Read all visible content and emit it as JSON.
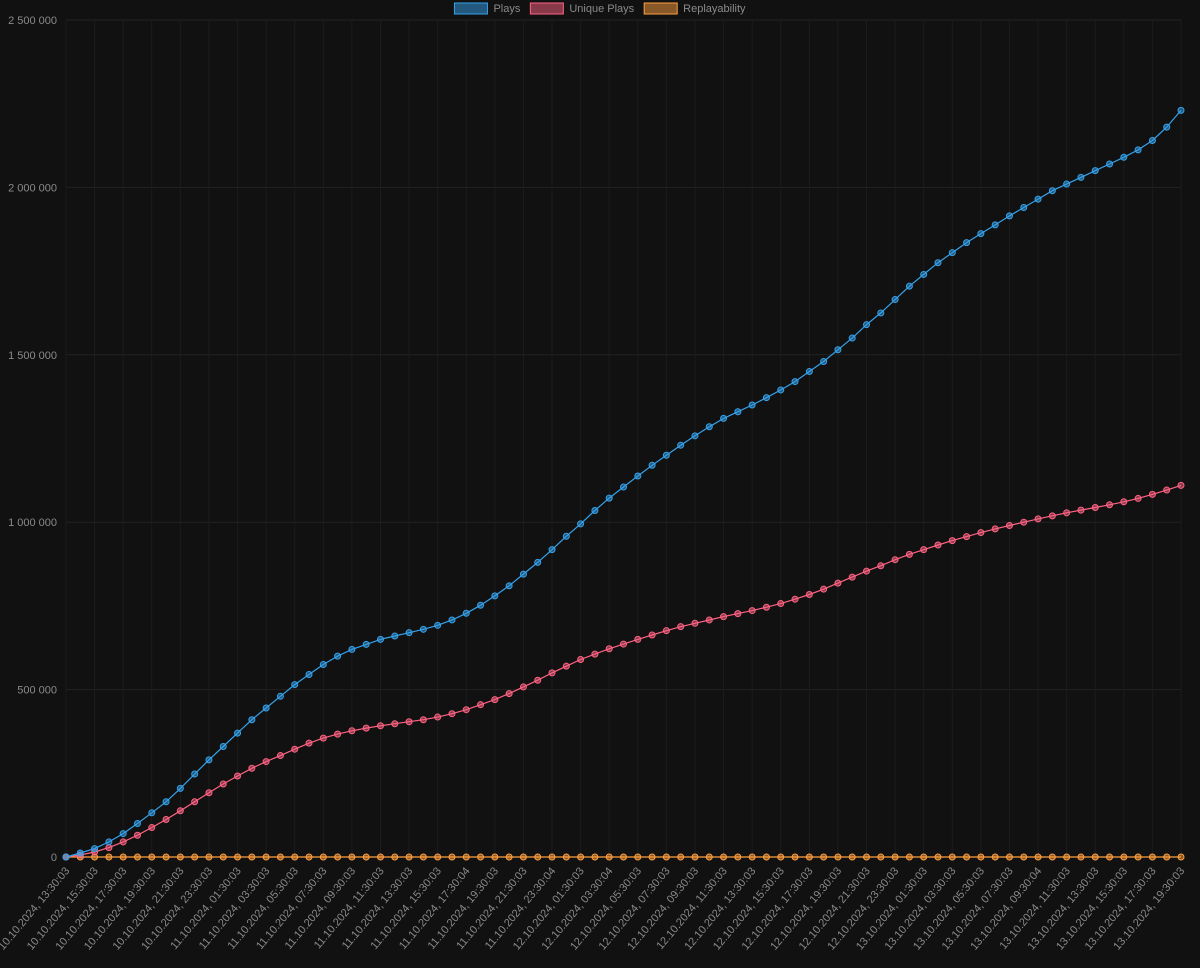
{
  "chart_data": {
    "type": "line",
    "categories": [
      "10.10.2024, 13:30:03",
      null,
      "10.10.2024, 15:30:03",
      null,
      "10.10.2024, 17:30:03",
      null,
      "10.10.2024, 19:30:03",
      null,
      "10.10.2024, 21:30:03",
      null,
      "10.10.2024, 23:30:03",
      null,
      "11.10.2024, 01:30:03",
      null,
      "11.10.2024, 03:30:03",
      null,
      "11.10.2024, 05:30:03",
      null,
      "11.10.2024, 07:30:03",
      null,
      "11.10.2024, 09:30:03",
      null,
      "11.10.2024, 11:30:03",
      null,
      "11.10.2024, 13:30:03",
      null,
      "11.10.2024, 15:30:03",
      null,
      "11.10.2024, 17:30:04",
      null,
      "11.10.2024, 19:30:03",
      null,
      "11.10.2024, 21:30:03",
      null,
      "11.10.2024, 23:30:04",
      null,
      "12.10.2024, 01:30:03",
      null,
      "12.10.2024, 03:30:04",
      null,
      "12.10.2024, 05:30:03",
      null,
      "12.10.2024, 07:30:03",
      null,
      "12.10.2024, 09:30:03",
      null,
      "12.10.2024, 11:30:03",
      null,
      "12.10.2024, 13:30:03",
      null,
      "12.10.2024, 15:30:03",
      null,
      "12.10.2024, 17:30:03",
      null,
      "12.10.2024, 19:30:03",
      null,
      "12.10.2024, 21:30:03",
      null,
      "12.10.2024, 23:30:03",
      null,
      "13.10.2024, 01:30:03",
      null,
      "13.10.2024, 03:30:03",
      null,
      "13.10.2024, 05:30:03",
      null,
      "13.10.2024, 07:30:03",
      null,
      "13.10.2024, 09:30:04",
      null,
      "13.10.2024, 11:30:03",
      null,
      "13.10.2024, 13:30:03",
      null,
      "13.10.2024, 15:30:03",
      null,
      "13.10.2024, 17:30:03",
      null,
      "13.10.2024, 19:30:03"
    ],
    "series": [
      {
        "name": "Plays",
        "color": "#36a2eb",
        "values": [
          0,
          12000,
          25000,
          45000,
          70000,
          100000,
          132000,
          165000,
          205000,
          248000,
          290000,
          330000,
          370000,
          410000,
          445000,
          480000,
          515000,
          545000,
          575000,
          600000,
          620000,
          635000,
          650000,
          660000,
          670000,
          680000,
          692000,
          708000,
          728000,
          752000,
          780000,
          810000,
          845000,
          880000,
          918000,
          958000,
          995000,
          1035000,
          1072000,
          1105000,
          1138000,
          1170000,
          1200000,
          1230000,
          1258000,
          1285000,
          1310000,
          1330000,
          1350000,
          1372000,
          1395000,
          1420000,
          1450000,
          1480000,
          1515000,
          1550000,
          1590000,
          1625000,
          1665000,
          1705000,
          1740000,
          1775000,
          1805000,
          1835000,
          1862000,
          1888000,
          1915000,
          1940000,
          1965000,
          1990000,
          2010000,
          2030000,
          2050000,
          2070000,
          2090000,
          2112000,
          2140000,
          2180000,
          2230000
        ]
      },
      {
        "name": "Unique Plays",
        "color": "#ff6384",
        "values": [
          0,
          6000,
          15000,
          28000,
          45000,
          65000,
          88000,
          112000,
          138000,
          165000,
          192000,
          218000,
          242000,
          265000,
          285000,
          303000,
          322000,
          340000,
          355000,
          367000,
          377000,
          385000,
          392000,
          398000,
          404000,
          410000,
          418000,
          428000,
          440000,
          455000,
          470000,
          488000,
          508000,
          528000,
          550000,
          570000,
          590000,
          606000,
          622000,
          636000,
          650000,
          663000,
          676000,
          688000,
          698000,
          708000,
          718000,
          727000,
          736000,
          746000,
          757000,
          770000,
          784000,
          800000,
          818000,
          836000,
          854000,
          870000,
          888000,
          904000,
          918000,
          932000,
          945000,
          957000,
          969000,
          980000,
          990000,
          1000000,
          1010000,
          1019000,
          1028000,
          1036000,
          1044000,
          1052000,
          1061000,
          1071000,
          1083000,
          1096000,
          1110000
        ]
      },
      {
        "name": "Replayability",
        "color": "#ff9f40",
        "values": [
          2,
          2,
          2,
          2,
          2,
          2,
          2,
          2,
          2,
          2,
          2,
          2,
          2,
          2,
          2,
          2,
          2,
          2,
          2,
          2,
          2,
          2,
          2,
          2,
          2,
          2,
          2,
          2,
          2,
          2,
          2,
          2,
          2,
          2,
          2,
          2,
          2,
          2,
          2,
          2,
          2,
          2,
          2,
          2,
          2,
          2,
          2,
          2,
          2,
          2,
          2,
          2,
          2,
          2,
          2,
          2,
          2,
          2,
          2,
          2,
          2,
          2,
          2,
          2,
          2,
          2,
          2,
          2,
          2,
          2,
          2,
          2,
          2,
          2,
          2,
          2,
          2,
          2,
          2
        ]
      }
    ],
    "ylim": [
      0,
      2500000
    ],
    "yticks": [
      0,
      {
        "value": 500000,
        "label": "500 000"
      },
      {
        "value": 1000000,
        "label": "1 000 000"
      },
      {
        "value": 1500000,
        "label": "1 500 000"
      },
      {
        "value": 2000000,
        "label": "2 000 000"
      },
      {
        "value": 2500000,
        "label": "2 500 000"
      }
    ],
    "grid": true,
    "legend": "top"
  }
}
